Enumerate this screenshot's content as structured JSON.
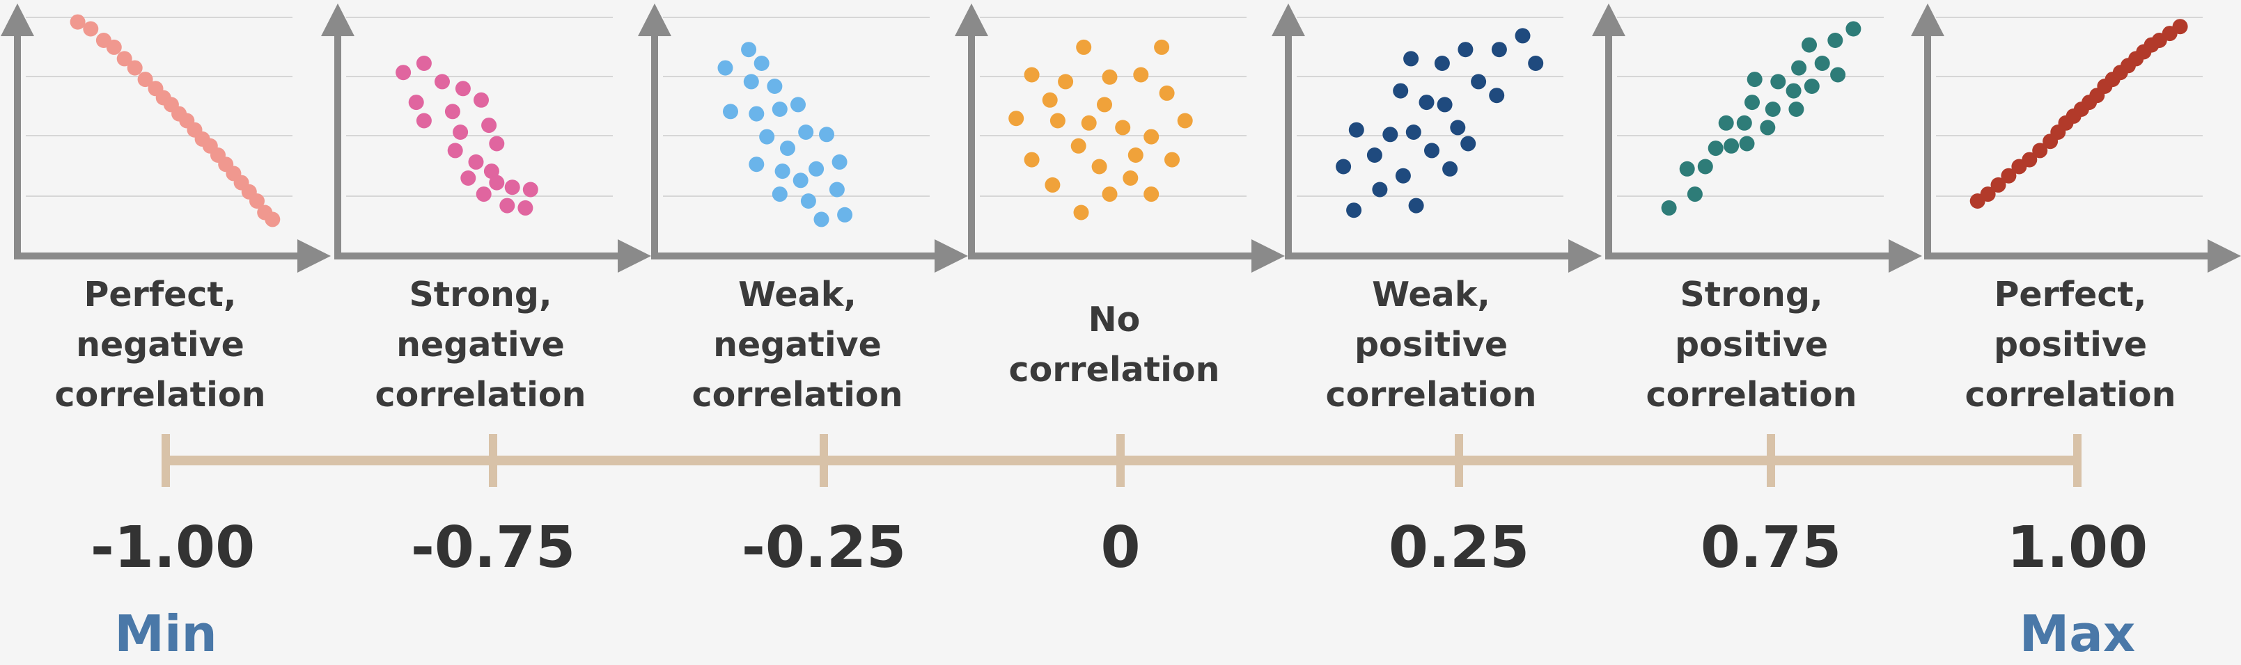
{
  "chart_data": {
    "type": "scatter",
    "colors": {
      "axis": "#8a8a8a",
      "grid": "#d6d6d6",
      "scale_line": "#d8c2a8",
      "value_text": "#333333",
      "label_text": "#3a3a3a",
      "min_max_text": "#4a78a8"
    },
    "panels": [
      {
        "title": "Perfect,\nnegative\ncorrelation",
        "color": "#f0988f",
        "points": [
          [
            0.2,
            0.98
          ],
          [
            0.25,
            0.95
          ],
          [
            0.3,
            0.9
          ],
          [
            0.34,
            0.87
          ],
          [
            0.38,
            0.82
          ],
          [
            0.42,
            0.78
          ],
          [
            0.46,
            0.73
          ],
          [
            0.5,
            0.69
          ],
          [
            0.53,
            0.65
          ],
          [
            0.56,
            0.62
          ],
          [
            0.59,
            0.58
          ],
          [
            0.62,
            0.55
          ],
          [
            0.65,
            0.51
          ],
          [
            0.68,
            0.47
          ],
          [
            0.71,
            0.44
          ],
          [
            0.74,
            0.4
          ],
          [
            0.77,
            0.36
          ],
          [
            0.8,
            0.32
          ],
          [
            0.83,
            0.28
          ],
          [
            0.86,
            0.24
          ],
          [
            0.89,
            0.2
          ],
          [
            0.92,
            0.15
          ],
          [
            0.95,
            0.12
          ]
        ]
      },
      {
        "title": "Strong,\nnegative\ncorrelation",
        "color": "#e0659f",
        "points": [
          [
            0.22,
            0.76
          ],
          [
            0.3,
            0.8
          ],
          [
            0.37,
            0.72
          ],
          [
            0.45,
            0.69
          ],
          [
            0.27,
            0.63
          ],
          [
            0.41,
            0.59
          ],
          [
            0.52,
            0.64
          ],
          [
            0.3,
            0.55
          ],
          [
            0.44,
            0.5
          ],
          [
            0.55,
            0.53
          ],
          [
            0.42,
            0.42
          ],
          [
            0.5,
            0.37
          ],
          [
            0.58,
            0.45
          ],
          [
            0.47,
            0.3
          ],
          [
            0.56,
            0.33
          ],
          [
            0.64,
            0.26
          ],
          [
            0.53,
            0.23
          ],
          [
            0.62,
            0.18
          ],
          [
            0.71,
            0.25
          ],
          [
            0.69,
            0.17
          ],
          [
            0.58,
            0.28
          ]
        ]
      },
      {
        "title": "Weak,\nnegative\ncorrelation",
        "color": "#6ab4ea",
        "points": [
          [
            0.24,
            0.78
          ],
          [
            0.33,
            0.86
          ],
          [
            0.38,
            0.8
          ],
          [
            0.34,
            0.72
          ],
          [
            0.43,
            0.7
          ],
          [
            0.26,
            0.59
          ],
          [
            0.36,
            0.58
          ],
          [
            0.45,
            0.6
          ],
          [
            0.52,
            0.62
          ],
          [
            0.4,
            0.48
          ],
          [
            0.48,
            0.43
          ],
          [
            0.55,
            0.5
          ],
          [
            0.63,
            0.49
          ],
          [
            0.36,
            0.36
          ],
          [
            0.46,
            0.33
          ],
          [
            0.59,
            0.34
          ],
          [
            0.68,
            0.37
          ],
          [
            0.45,
            0.23
          ],
          [
            0.56,
            0.2
          ],
          [
            0.67,
            0.25
          ],
          [
            0.61,
            0.12
          ],
          [
            0.7,
            0.14
          ],
          [
            0.53,
            0.29
          ]
        ]
      },
      {
        "title": "No\ncorrelation",
        "color": "#f0a23a",
        "points": [
          [
            0.4,
            0.87
          ],
          [
            0.7,
            0.87
          ],
          [
            0.2,
            0.75
          ],
          [
            0.33,
            0.72
          ],
          [
            0.5,
            0.74
          ],
          [
            0.62,
            0.75
          ],
          [
            0.27,
            0.64
          ],
          [
            0.48,
            0.62
          ],
          [
            0.72,
            0.67
          ],
          [
            0.14,
            0.56
          ],
          [
            0.3,
            0.55
          ],
          [
            0.42,
            0.54
          ],
          [
            0.55,
            0.52
          ],
          [
            0.66,
            0.48
          ],
          [
            0.79,
            0.55
          ],
          [
            0.38,
            0.44
          ],
          [
            0.6,
            0.4
          ],
          [
            0.2,
            0.38
          ],
          [
            0.46,
            0.35
          ],
          [
            0.74,
            0.38
          ],
          [
            0.28,
            0.27
          ],
          [
            0.5,
            0.23
          ],
          [
            0.66,
            0.23
          ],
          [
            0.39,
            0.15
          ],
          [
            0.58,
            0.3
          ]
        ]
      },
      {
        "title": "Weak,\npositive\ncorrelation",
        "color": "#1f4a7e",
        "points": [
          [
            0.44,
            0.82
          ],
          [
            0.56,
            0.8
          ],
          [
            0.65,
            0.86
          ],
          [
            0.78,
            0.86
          ],
          [
            0.87,
            0.92
          ],
          [
            0.92,
            0.8
          ],
          [
            0.4,
            0.68
          ],
          [
            0.5,
            0.63
          ],
          [
            0.57,
            0.62
          ],
          [
            0.7,
            0.72
          ],
          [
            0.77,
            0.66
          ],
          [
            0.23,
            0.51
          ],
          [
            0.36,
            0.49
          ],
          [
            0.45,
            0.5
          ],
          [
            0.62,
            0.52
          ],
          [
            0.3,
            0.4
          ],
          [
            0.52,
            0.42
          ],
          [
            0.66,
            0.45
          ],
          [
            0.18,
            0.35
          ],
          [
            0.41,
            0.31
          ],
          [
            0.59,
            0.34
          ],
          [
            0.32,
            0.25
          ],
          [
            0.46,
            0.18
          ],
          [
            0.22,
            0.16
          ]
        ]
      },
      {
        "title": "Strong,\npositive\ncorrelation",
        "color": "#2e7c78",
        "points": [
          [
            0.74,
            0.88
          ],
          [
            0.84,
            0.9
          ],
          [
            0.91,
            0.95
          ],
          [
            0.7,
            0.78
          ],
          [
            0.79,
            0.8
          ],
          [
            0.85,
            0.75
          ],
          [
            0.53,
            0.73
          ],
          [
            0.62,
            0.72
          ],
          [
            0.68,
            0.68
          ],
          [
            0.75,
            0.7
          ],
          [
            0.52,
            0.63
          ],
          [
            0.6,
            0.6
          ],
          [
            0.69,
            0.6
          ],
          [
            0.42,
            0.54
          ],
          [
            0.49,
            0.54
          ],
          [
            0.58,
            0.52
          ],
          [
            0.44,
            0.44
          ],
          [
            0.5,
            0.45
          ],
          [
            0.38,
            0.43
          ],
          [
            0.27,
            0.34
          ],
          [
            0.34,
            0.35
          ],
          [
            0.3,
            0.23
          ],
          [
            0.2,
            0.17
          ]
        ]
      },
      {
        "title": "Perfect,\npositive\ncorrelation",
        "color": "#b23a2a",
        "points": [
          [
            0.16,
            0.2
          ],
          [
            0.2,
            0.23
          ],
          [
            0.24,
            0.27
          ],
          [
            0.28,
            0.31
          ],
          [
            0.32,
            0.35
          ],
          [
            0.36,
            0.38
          ],
          [
            0.4,
            0.42
          ],
          [
            0.44,
            0.46
          ],
          [
            0.47,
            0.5
          ],
          [
            0.5,
            0.54
          ],
          [
            0.53,
            0.57
          ],
          [
            0.56,
            0.6
          ],
          [
            0.59,
            0.63
          ],
          [
            0.62,
            0.66
          ],
          [
            0.65,
            0.7
          ],
          [
            0.68,
            0.73
          ],
          [
            0.71,
            0.76
          ],
          [
            0.74,
            0.79
          ],
          [
            0.77,
            0.82
          ],
          [
            0.8,
            0.85
          ],
          [
            0.83,
            0.88
          ],
          [
            0.86,
            0.9
          ],
          [
            0.9,
            0.93
          ],
          [
            0.94,
            0.96
          ]
        ]
      }
    ],
    "scale": {
      "values": [
        -1.0,
        -0.75,
        -0.25,
        0,
        0.25,
        0.75,
        1.0
      ],
      "labels": [
        "-1.00",
        "-0.75",
        "-0.25",
        "0",
        "0.25",
        "0.75",
        "1.00"
      ]
    },
    "min_label": "Min",
    "max_label": "Max"
  }
}
